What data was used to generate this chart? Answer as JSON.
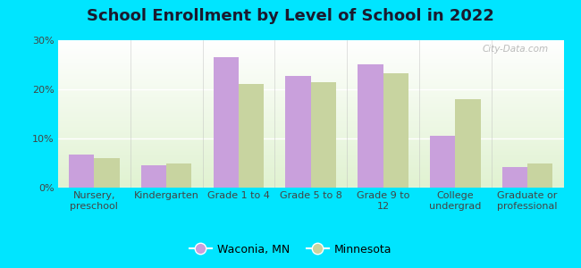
{
  "title": "School Enrollment by Level of School in 2022",
  "categories": [
    "Nursery,\npreschool",
    "Kindergarten",
    "Grade 1 to 4",
    "Grade 5 to 8",
    "Grade 9 to\n12",
    "College\nundergrad",
    "Graduate or\nprofessional"
  ],
  "waconia": [
    6.7,
    4.5,
    26.5,
    22.7,
    25.0,
    10.5,
    4.1
  ],
  "minnesota": [
    6.0,
    4.9,
    21.0,
    21.5,
    23.2,
    18.0,
    4.9
  ],
  "waconia_color": "#c9a0dc",
  "minnesota_color": "#c8d4a0",
  "background_outer": "#00e5ff",
  "ylim": [
    0,
    30
  ],
  "yticks": [
    0,
    10,
    20,
    30
  ],
  "ytick_labels": [
    "0%",
    "10%",
    "20%",
    "30%"
  ],
  "bar_width": 0.35,
  "legend_labels": [
    "Waconia, MN",
    "Minnesota"
  ],
  "watermark": "City-Data.com",
  "title_fontsize": 13,
  "tick_fontsize": 8,
  "legend_fontsize": 9
}
